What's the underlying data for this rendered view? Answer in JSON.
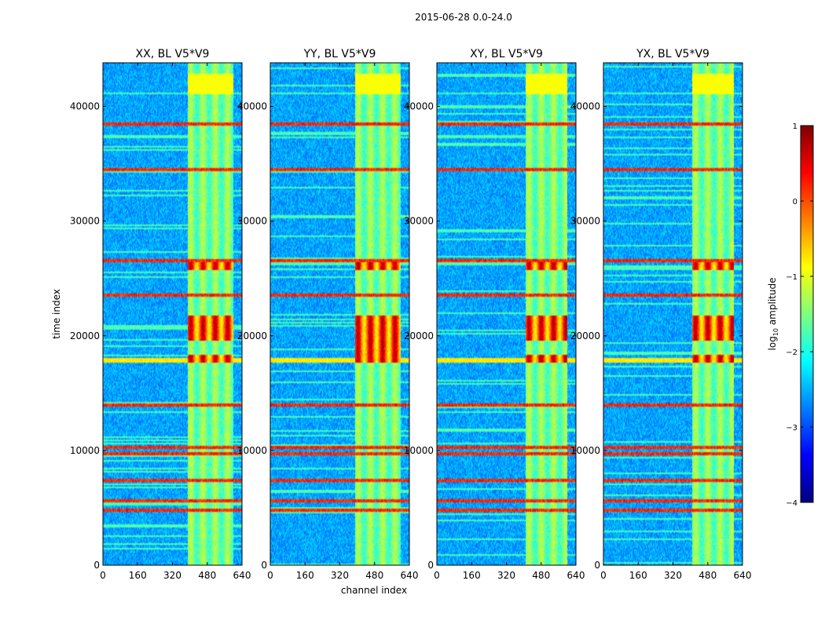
{
  "figure": {
    "suptitle": "2015-06-28 0.0-24.0",
    "xlabel": "channel index",
    "ylabel": "time index"
  },
  "colorbar": {
    "label_prefix": "log",
    "label_sub": "10",
    "label_suffix": " amplitude",
    "range": [
      -4,
      1
    ],
    "ticks": [
      "1",
      "0",
      "−1",
      "−2",
      "−3",
      "−4"
    ],
    "tick_values": [
      1,
      0,
      -1,
      -2,
      -3,
      -4
    ],
    "colormap": "jet",
    "stops": [
      "#00007f",
      "#0000ff",
      "#007fff",
      "#00ffff",
      "#7fff7f",
      "#ffff00",
      "#ff7f00",
      "#ff0000",
      "#7f0000"
    ]
  },
  "chart_data": [
    {
      "type": "heatmap",
      "title": "XX, BL V5*V9",
      "x_range": [
        0,
        640
      ],
      "y_range": [
        0,
        43800
      ],
      "x_ticks": [
        0,
        160,
        320,
        480,
        640
      ],
      "y_ticks": [
        0,
        10000,
        20000,
        30000,
        40000
      ],
      "signal_channels": [
        390,
        600
      ],
      "hot_time_bands": [
        [
          17600,
          18300
        ],
        [
          19600,
          21800
        ],
        [
          25800,
          26400
        ],
        [
          38300,
          38500
        ]
      ],
      "rfi_time_rows": [
        4800,
        5600,
        7400,
        9700,
        10300,
        14000,
        23500,
        26500,
        34500,
        38400
      ],
      "leakage_row": 17800
    },
    {
      "type": "heatmap",
      "title": "YY, BL V5*V9",
      "x_range": [
        0,
        640
      ],
      "y_range": [
        0,
        43800
      ],
      "x_ticks": [
        0,
        160,
        320,
        480,
        640
      ],
      "y_ticks": [
        0,
        10000,
        20000,
        30000,
        40000
      ],
      "signal_channels": [
        390,
        600
      ],
      "hot_time_bands": [
        [
          17600,
          19600
        ],
        [
          19600,
          21800
        ],
        [
          25800,
          26400
        ],
        [
          38300,
          38500
        ]
      ],
      "rfi_time_rows": [
        4800,
        5600,
        7400,
        9700,
        10300,
        14000,
        23500,
        26500,
        34500,
        38400
      ],
      "leakage_row": 17800
    },
    {
      "type": "heatmap",
      "title": "XY, BL V5*V9",
      "x_range": [
        0,
        640
      ],
      "y_range": [
        0,
        43800
      ],
      "x_ticks": [
        0,
        160,
        320,
        480,
        640
      ],
      "y_ticks": [
        0,
        10000,
        20000,
        30000,
        40000
      ],
      "signal_channels": [
        410,
        600
      ],
      "hot_time_bands": [
        [
          17600,
          18300
        ],
        [
          19600,
          21800
        ],
        [
          25800,
          26400
        ],
        [
          38300,
          38500
        ]
      ],
      "rfi_time_rows": [
        4800,
        5600,
        7400,
        9700,
        10300,
        14000,
        23500,
        26500,
        34500,
        38400
      ],
      "leakage_row": 17800
    },
    {
      "type": "heatmap",
      "title": "YX, BL V5*V9",
      "x_range": [
        0,
        640
      ],
      "y_range": [
        0,
        43800
      ],
      "x_ticks": [
        0,
        160,
        320,
        480,
        640
      ],
      "y_ticks": [
        0,
        10000,
        20000,
        30000,
        40000
      ],
      "signal_channels": [
        410,
        600
      ],
      "hot_time_bands": [
        [
          17600,
          18300
        ],
        [
          19600,
          21800
        ],
        [
          25800,
          26400
        ],
        [
          38300,
          38500
        ]
      ],
      "rfi_time_rows": [
        4800,
        5600,
        7400,
        9700,
        10300,
        14000,
        23500,
        26500,
        34500,
        38400
      ],
      "leakage_row": 17800
    }
  ]
}
